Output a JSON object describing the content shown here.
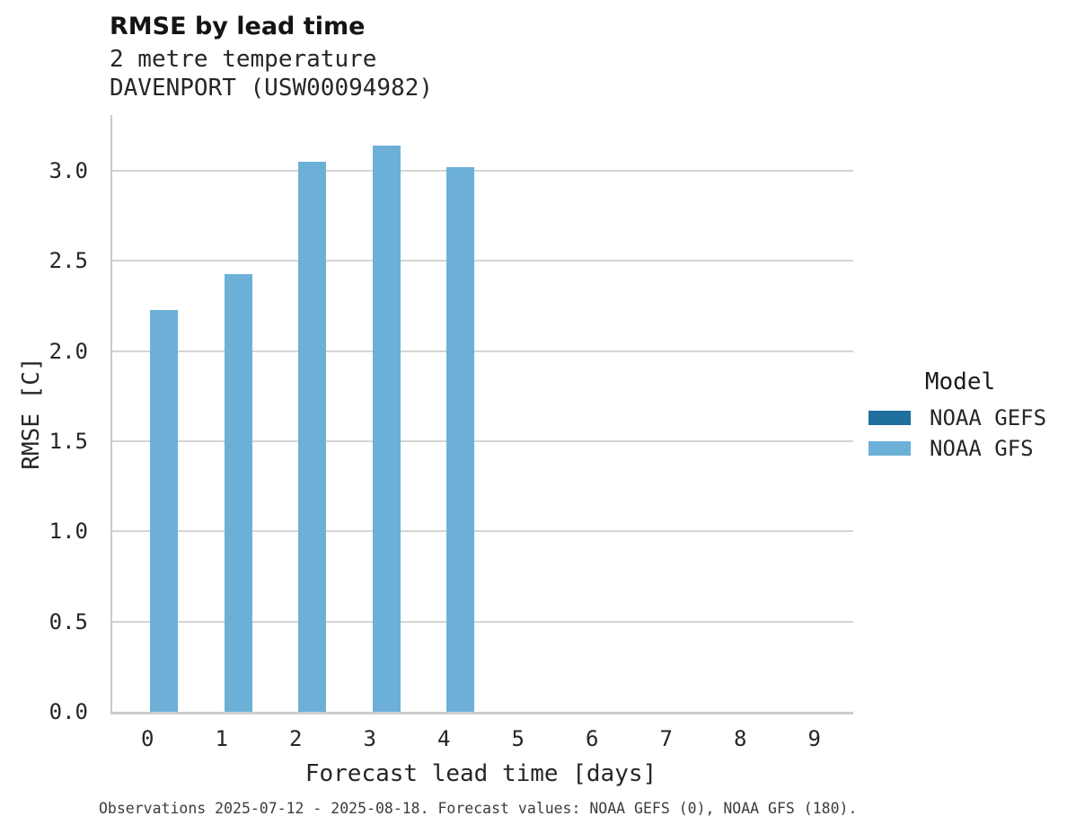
{
  "header": {
    "title": "RMSE by lead time",
    "subtitle_variable": "2 metre temperature",
    "subtitle_station": "DAVENPORT (USW00094982)"
  },
  "footer": {
    "text": "Observations 2025-07-12 - 2025-08-18. Forecast values: NOAA GEFS (0), NOAA GFS (180)."
  },
  "colors": {
    "background": "#ffffff",
    "grid": "#d4d4d4",
    "spine": "#c9c9c9",
    "text": "#262626",
    "noaa_gefs_blue": "#1f6f9e",
    "noaa_gfs_blue": "#6cb0d8"
  },
  "chart_data": {
    "type": "bar",
    "title": "RMSE by lead time",
    "subtitle": [
      "2 metre temperature",
      "DAVENPORT (USW00094982)"
    ],
    "categories": [
      "0",
      "1",
      "2",
      "3",
      "4",
      "5",
      "6",
      "7",
      "8",
      "9"
    ],
    "series": [
      {
        "name": "NOAA GEFS",
        "color": "#1f6f9e",
        "values": [
          null,
          null,
          null,
          null,
          null,
          null,
          null,
          null,
          null,
          null
        ]
      },
      {
        "name": "NOAA GFS",
        "color": "#6cb0d8",
        "values": [
          2.23,
          2.43,
          3.05,
          3.14,
          3.02,
          null,
          null,
          null,
          null,
          null
        ]
      }
    ],
    "xlabel": "Forecast lead time [days]",
    "ylabel": "RMSE [C]",
    "ylim": [
      0,
      3.31
    ],
    "yticks": [
      0.0,
      0.5,
      1.0,
      1.5,
      2.0,
      2.5,
      3.0
    ],
    "ytick_labels": [
      "0.0",
      "0.5",
      "1.0",
      "1.5",
      "2.0",
      "2.5",
      "3.0"
    ],
    "grid": "horizontal",
    "legend": {
      "title": "Model",
      "position": "center-right",
      "entries": [
        "NOAA GEFS",
        "NOAA GFS"
      ]
    }
  }
}
